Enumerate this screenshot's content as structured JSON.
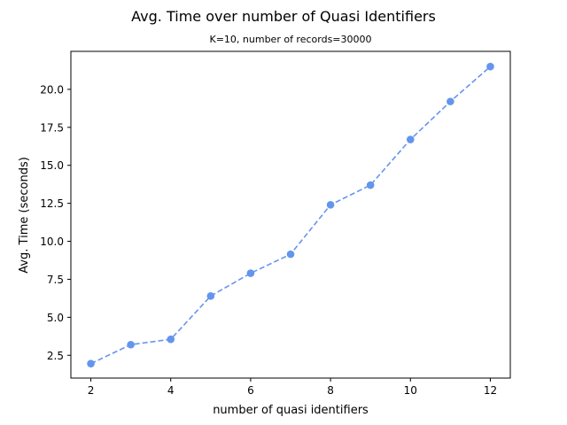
{
  "chart_data": {
    "type": "line",
    "title": "Avg. Time over number of Quasi Identifiers",
    "subtitle": "K=10, number of records=30000",
    "xlabel": "number of quasi identifiers",
    "ylabel": "Avg. Time (seconds)",
    "xlim": [
      1.5,
      12.5
    ],
    "ylim": [
      1.0,
      22.5
    ],
    "xticks": [
      2,
      4,
      6,
      8,
      10,
      12
    ],
    "xtick_labels": [
      "2",
      "4",
      "6",
      "8",
      "10",
      "12"
    ],
    "yticks": [
      2.5,
      5.0,
      7.5,
      10.0,
      12.5,
      15.0,
      17.5,
      20.0
    ],
    "ytick_labels": [
      "2.5",
      "5.0",
      "7.5",
      "10.0",
      "12.5",
      "15.0",
      "17.5",
      "20.0"
    ],
    "grid": false,
    "series": [
      {
        "x": [
          2,
          3,
          4,
          5,
          6,
          7,
          8,
          9,
          10,
          11,
          12
        ],
        "values": [
          1.95,
          3.2,
          3.55,
          6.4,
          7.9,
          9.15,
          12.4,
          13.7,
          16.7,
          19.2,
          21.5
        ],
        "color": "#6495ED",
        "line_style": "dashed",
        "marker": "circle"
      }
    ]
  }
}
